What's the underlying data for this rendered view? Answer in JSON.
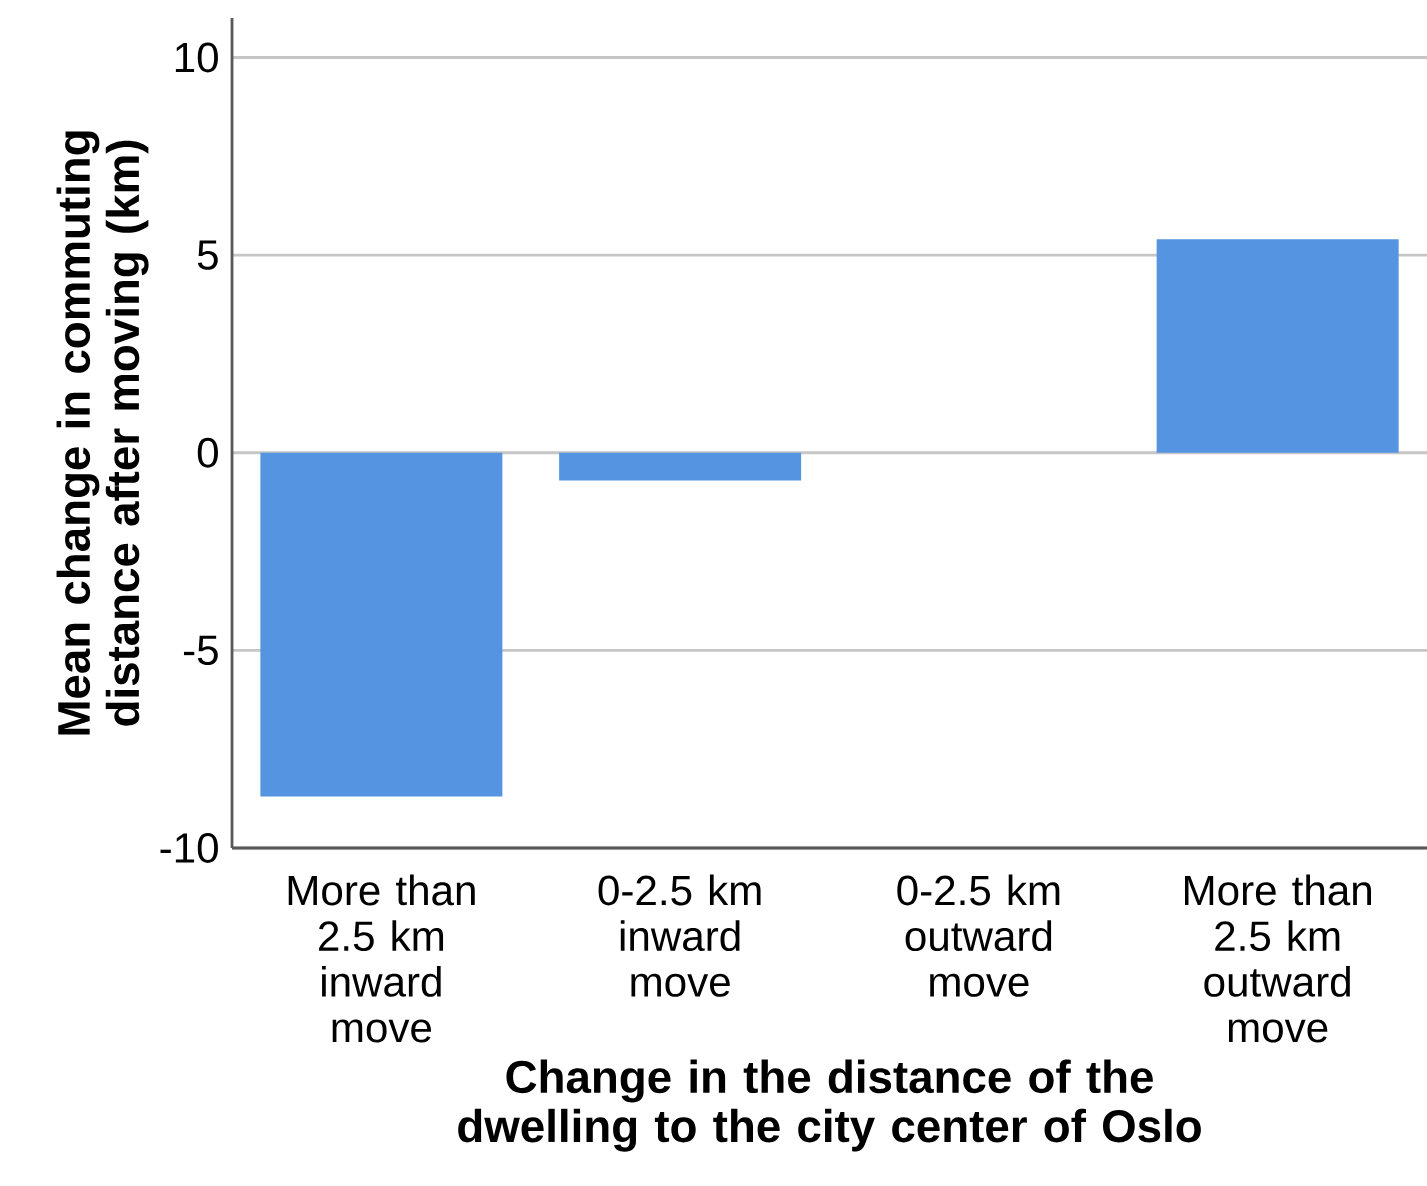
{
  "chart_data": {
    "type": "bar",
    "xlabel": "Change in the distance of the dwelling to the city center of Oslo",
    "ylabel": "Mean change in commuting distance after moving (km)",
    "categories": [
      "More than 2.5 km inward move",
      "0-2.5 km inward move",
      "0-2.5 km outward move",
      "More than 2.5 km outward move"
    ],
    "values": [
      -8.7,
      -0.7,
      0,
      5.4
    ],
    "color": "#5594e0",
    "ylim": [
      -10,
      11
    ],
    "yticks": [
      -10,
      -5,
      0,
      5,
      10
    ],
    "grid": "y"
  }
}
